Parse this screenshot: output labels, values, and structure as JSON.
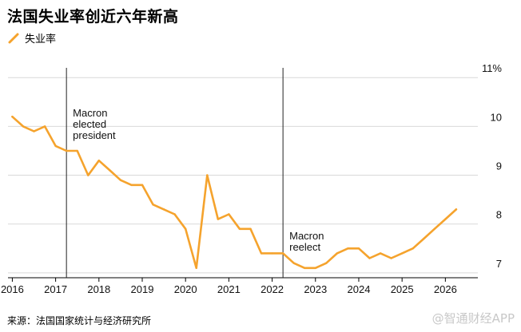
{
  "title": "法国失业率创近六年新高",
  "legend": {
    "label": "失业率",
    "color": "#f5a32d"
  },
  "source": "来源：法国国家统计与经济研究所",
  "watermark": "@智通财经APP",
  "chart_data": {
    "type": "line",
    "title": "法国失业率创近六年新高",
    "xlabel": "",
    "ylabel": "",
    "x_ticks": [
      "2016",
      "2017",
      "2018",
      "2019",
      "2020",
      "2021",
      "2022",
      "2023",
      "2024",
      "2025",
      "2026"
    ],
    "y_ticks": [
      "7",
      "8",
      "9",
      "10",
      "11%"
    ],
    "ylim": [
      6.9,
      11.2
    ],
    "xlim": [
      2015.9,
      2026.75
    ],
    "grid": "horizontal",
    "series": [
      {
        "name": "失业率",
        "color": "#f5a32d",
        "x": [
          2016.0,
          2016.25,
          2016.5,
          2016.75,
          2017.0,
          2017.25,
          2017.5,
          2017.75,
          2018.0,
          2018.25,
          2018.5,
          2018.75,
          2019.0,
          2019.25,
          2019.5,
          2019.75,
          2020.0,
          2020.25,
          2020.5,
          2020.75,
          2021.0,
          2021.25,
          2021.5,
          2021.75,
          2022.0,
          2022.25,
          2022.5,
          2022.75,
          2023.0,
          2023.25,
          2023.5,
          2023.75,
          2024.0,
          2024.25,
          2024.5,
          2024.75,
          2025.0,
          2025.25,
          2025.5,
          2025.75,
          2026.0,
          2026.25
        ],
        "values": [
          10.2,
          10.0,
          9.9,
          10.0,
          9.6,
          9.5,
          9.5,
          9.0,
          9.3,
          9.1,
          8.9,
          8.8,
          8.8,
          8.4,
          8.3,
          8.2,
          7.9,
          7.1,
          9.0,
          8.1,
          8.2,
          7.9,
          7.9,
          7.4,
          7.4,
          7.4,
          7.2,
          7.1,
          7.1,
          7.2,
          7.4,
          7.5,
          7.5,
          7.3,
          7.4,
          7.3,
          7.4,
          7.5,
          7.7,
          7.9,
          8.1,
          8.3
        ]
      }
    ],
    "annotations": [
      {
        "x": 2017.25,
        "label": [
          "Macron",
          "elected",
          "president"
        ]
      },
      {
        "x": 2022.25,
        "label": [
          "Macron",
          "reelect"
        ]
      }
    ]
  }
}
